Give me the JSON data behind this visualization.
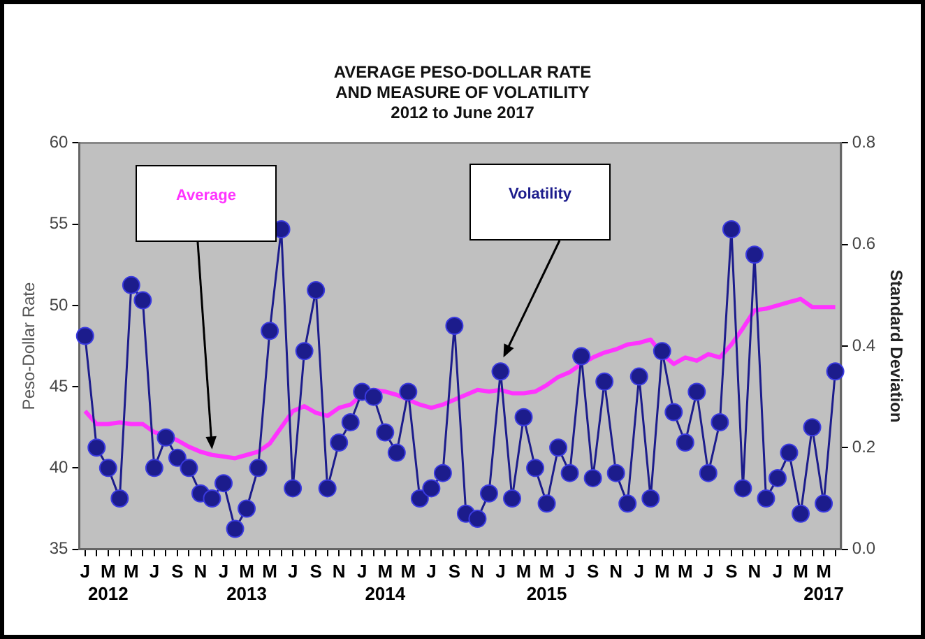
{
  "chart_data": {
    "type": "line",
    "title": [
      "AVERAGE PESO-DOLLAR RATE",
      "AND MEASURE OF VOLATILITY",
      "2012 to June 2017"
    ],
    "ylabel": "Peso-Dollar Rate",
    "y2label": "Standard Deviation",
    "categories": [
      "J",
      null,
      "M\n2012",
      null,
      "M",
      null,
      "J",
      null,
      "S",
      null,
      "N",
      null,
      "J",
      null,
      "M\n2013",
      null,
      "M",
      null,
      "J",
      null,
      "S",
      null,
      "N",
      null,
      "J",
      null,
      "M\n2014",
      null,
      "M",
      null,
      "J",
      null,
      "S",
      null,
      "N",
      null,
      "J",
      null,
      "M",
      null,
      "M\n2015",
      null,
      "J",
      null,
      "S",
      null,
      "N",
      null,
      "J",
      null,
      "M",
      null,
      "M",
      null,
      "J",
      null,
      "S",
      null,
      "N",
      null,
      "J",
      null,
      "M",
      null,
      "M\n2017",
      null
    ],
    "series": [
      {
        "name": "Average",
        "axis": "y",
        "color": "#ff33ff",
        "marker": "none",
        "values": [
          43.5,
          42.7,
          42.7,
          42.8,
          42.7,
          42.7,
          42.2,
          42.0,
          41.7,
          41.3,
          41.0,
          40.8,
          40.7,
          40.6,
          40.8,
          41.0,
          41.5,
          42.5,
          43.5,
          43.8,
          43.4,
          43.2,
          43.7,
          43.9,
          44.5,
          44.8,
          44.7,
          44.5,
          44.2,
          43.9,
          43.7,
          43.9,
          44.2,
          44.5,
          44.8,
          44.7,
          44.8,
          44.6,
          44.6,
          44.7,
          45.1,
          45.6,
          45.9,
          46.4,
          46.8,
          47.1,
          47.3,
          47.6,
          47.7,
          47.9,
          47.0,
          46.4,
          46.8,
          46.6,
          47.0,
          46.8,
          47.6,
          48.6,
          49.7,
          49.8,
          50.0,
          50.2,
          50.4,
          49.9,
          49.9,
          49.9
        ]
      },
      {
        "name": "Volatility",
        "axis": "y2",
        "color": "#1c1c8c",
        "marker": "circle",
        "values": [
          0.42,
          0.2,
          0.16,
          0.1,
          0.52,
          0.49,
          0.16,
          0.22,
          0.18,
          0.16,
          0.11,
          0.1,
          0.13,
          0.04,
          0.08,
          0.16,
          0.43,
          0.63,
          0.12,
          0.39,
          0.51,
          0.12,
          0.21,
          0.25,
          0.31,
          0.3,
          0.23,
          0.19,
          0.31,
          0.1,
          0.12,
          0.15,
          0.44,
          0.07,
          0.06,
          0.11,
          0.35,
          0.1,
          0.26,
          0.16,
          0.09,
          0.2,
          0.15,
          0.38,
          0.14,
          0.33,
          0.15,
          0.09,
          0.34,
          0.1,
          0.39,
          0.27,
          0.21,
          0.31,
          0.15,
          0.25,
          0.63,
          0.12,
          0.58,
          0.1,
          0.14,
          0.19,
          0.07,
          0.24,
          0.09,
          0.35
        ]
      }
    ],
    "ylim": [
      35,
      60
    ],
    "yticks": [
      35,
      40,
      45,
      50,
      55,
      60
    ],
    "y2lim": [
      0,
      0.8
    ],
    "y2ticks": [
      {
        "value": 0,
        "label": "0.0"
      },
      0.2,
      0.4,
      0.6,
      0.8
    ],
    "grid": false,
    "legend": false,
    "line_style": "solid"
  }
}
